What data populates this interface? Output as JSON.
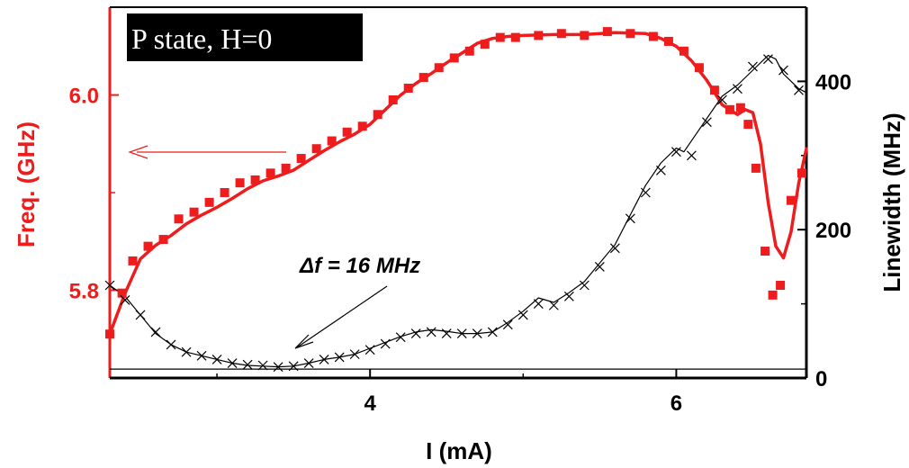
{
  "chart_data": {
    "type": "line",
    "title": "P state, H=0",
    "xlabel": "I (mA)",
    "ylabel_left": "Freq. (GHz)",
    "ylabel_right": "Linewidth (MHz)",
    "xlim": [
      2.3,
      6.85
    ],
    "ylim_left": [
      5.71,
      6.09
    ],
    "ylim_right": [
      0,
      500
    ],
    "x_ticks": [
      4,
      6
    ],
    "x_tick_labels": [
      "4",
      "6"
    ],
    "y_left_ticks": [
      5.8,
      6.0
    ],
    "y_left_tick_labels": [
      "5.8",
      "6.0"
    ],
    "y_right_ticks": [
      0,
      200,
      400
    ],
    "y_right_tick_labels": [
      "0",
      "200",
      "400"
    ],
    "baseline_linewidth": 12,
    "annotation": "Δf = 16 MHz",
    "colors": {
      "frequency": "#ee1c1c",
      "linewidth": "#000000",
      "title_bg": "#000000",
      "title_fg": "#ffffff"
    },
    "series": [
      {
        "name": "Frequency",
        "axis": "left",
        "marker": "square",
        "color": "#ee1c1c",
        "curve": [
          [
            2.3,
            5.755
          ],
          [
            2.4,
            5.797
          ],
          [
            2.5,
            5.832
          ],
          [
            2.6,
            5.846
          ],
          [
            2.7,
            5.856
          ],
          [
            2.8,
            5.868
          ],
          [
            2.9,
            5.877
          ],
          [
            3.0,
            5.885
          ],
          [
            3.1,
            5.894
          ],
          [
            3.2,
            5.904
          ],
          [
            3.3,
            5.912
          ],
          [
            3.4,
            5.917
          ],
          [
            3.5,
            5.923
          ],
          [
            3.6,
            5.933
          ],
          [
            3.7,
            5.943
          ],
          [
            3.8,
            5.952
          ],
          [
            3.9,
            5.96
          ],
          [
            4.0,
            5.97
          ],
          [
            4.1,
            5.985
          ],
          [
            4.2,
            6.0
          ],
          [
            4.3,
            6.012
          ],
          [
            4.4,
            6.022
          ],
          [
            4.5,
            6.033
          ],
          [
            4.6,
            6.043
          ],
          [
            4.7,
            6.053
          ],
          [
            4.8,
            6.058
          ],
          [
            4.9,
            6.06
          ],
          [
            5.0,
            6.061
          ],
          [
            5.2,
            6.062
          ],
          [
            5.4,
            6.062
          ],
          [
            5.6,
            6.064
          ],
          [
            5.8,
            6.063
          ],
          [
            5.9,
            6.058
          ],
          [
            6.0,
            6.05
          ],
          [
            6.1,
            6.035
          ],
          [
            6.2,
            6.015
          ],
          [
            6.3,
            5.99
          ],
          [
            6.4,
            5.98
          ],
          [
            6.45,
            5.985
          ],
          [
            6.5,
            5.982
          ],
          [
            6.55,
            5.95
          ],
          [
            6.6,
            5.89
          ],
          [
            6.65,
            5.845
          ],
          [
            6.7,
            5.833
          ],
          [
            6.75,
            5.86
          ],
          [
            6.8,
            5.91
          ],
          [
            6.85,
            5.945
          ]
        ],
        "markers": [
          [
            2.3,
            5.755
          ],
          [
            2.38,
            5.797
          ],
          [
            2.45,
            5.83
          ],
          [
            2.55,
            5.845
          ],
          [
            2.65,
            5.852
          ],
          [
            2.75,
            5.873
          ],
          [
            2.85,
            5.88
          ],
          [
            2.95,
            5.89
          ],
          [
            3.05,
            5.9
          ],
          [
            3.15,
            5.91
          ],
          [
            3.25,
            5.913
          ],
          [
            3.35,
            5.92
          ],
          [
            3.45,
            5.925
          ],
          [
            3.55,
            5.935
          ],
          [
            3.65,
            5.945
          ],
          [
            3.75,
            5.953
          ],
          [
            3.85,
            5.962
          ],
          [
            3.95,
            5.968
          ],
          [
            4.05,
            5.98
          ],
          [
            4.15,
            5.995
          ],
          [
            4.25,
            6.007
          ],
          [
            4.35,
            6.018
          ],
          [
            4.45,
            6.028
          ],
          [
            4.55,
            6.038
          ],
          [
            4.65,
            6.045
          ],
          [
            4.75,
            6.052
          ],
          [
            4.85,
            6.059
          ],
          [
            4.95,
            6.059
          ],
          [
            5.1,
            6.061
          ],
          [
            5.25,
            6.063
          ],
          [
            5.4,
            6.061
          ],
          [
            5.55,
            6.065
          ],
          [
            5.7,
            6.063
          ],
          [
            5.85,
            6.06
          ],
          [
            5.95,
            6.055
          ],
          [
            6.05,
            6.045
          ],
          [
            6.15,
            6.028
          ],
          [
            6.25,
            6.005
          ],
          [
            6.35,
            5.985
          ],
          [
            6.42,
            5.987
          ],
          [
            6.47,
            5.97
          ],
          [
            6.52,
            5.925
          ],
          [
            6.58,
            5.84
          ],
          [
            6.63,
            5.795
          ],
          [
            6.68,
            5.805
          ],
          [
            6.75,
            5.892
          ],
          [
            6.82,
            5.92
          ]
        ]
      },
      {
        "name": "Linewidth",
        "axis": "right",
        "marker": "x",
        "color": "#000000",
        "curve": [
          [
            2.3,
            125
          ],
          [
            2.4,
            110
          ],
          [
            2.5,
            85
          ],
          [
            2.6,
            60
          ],
          [
            2.7,
            45
          ],
          [
            2.8,
            35
          ],
          [
            2.9,
            30
          ],
          [
            3.0,
            25
          ],
          [
            3.1,
            20
          ],
          [
            3.2,
            17
          ],
          [
            3.3,
            16
          ],
          [
            3.4,
            15
          ],
          [
            3.5,
            16
          ],
          [
            3.6,
            20
          ],
          [
            3.7,
            25
          ],
          [
            3.8,
            28
          ],
          [
            3.9,
            32
          ],
          [
            4.0,
            40
          ],
          [
            4.1,
            48
          ],
          [
            4.2,
            56
          ],
          [
            4.3,
            62
          ],
          [
            4.4,
            65
          ],
          [
            4.5,
            63
          ],
          [
            4.6,
            60
          ],
          [
            4.7,
            60
          ],
          [
            4.8,
            62
          ],
          [
            4.9,
            75
          ],
          [
            5.0,
            90
          ],
          [
            5.1,
            108
          ],
          [
            5.15,
            105
          ],
          [
            5.2,
            102
          ],
          [
            5.3,
            115
          ],
          [
            5.4,
            130
          ],
          [
            5.5,
            155
          ],
          [
            5.6,
            180
          ],
          [
            5.7,
            220
          ],
          [
            5.8,
            260
          ],
          [
            5.9,
            290
          ],
          [
            6.0,
            310
          ],
          [
            6.05,
            305
          ],
          [
            6.1,
            320
          ],
          [
            6.2,
            350
          ],
          [
            6.3,
            380
          ],
          [
            6.4,
            395
          ],
          [
            6.5,
            415
          ],
          [
            6.6,
            435
          ],
          [
            6.65,
            430
          ],
          [
            6.7,
            410
          ],
          [
            6.8,
            390
          ],
          [
            6.85,
            385
          ]
        ],
        "markers": [
          [
            2.3,
            125
          ],
          [
            2.4,
            105
          ],
          [
            2.5,
            85
          ],
          [
            2.6,
            62
          ],
          [
            2.7,
            45
          ],
          [
            2.8,
            35
          ],
          [
            2.9,
            30
          ],
          [
            3.0,
            25
          ],
          [
            3.1,
            20
          ],
          [
            3.2,
            18
          ],
          [
            3.3,
            17
          ],
          [
            3.4,
            15
          ],
          [
            3.5,
            16
          ],
          [
            3.6,
            20
          ],
          [
            3.7,
            25
          ],
          [
            3.8,
            28
          ],
          [
            3.9,
            32
          ],
          [
            4.0,
            38
          ],
          [
            4.1,
            46
          ],
          [
            4.2,
            55
          ],
          [
            4.3,
            60
          ],
          [
            4.4,
            62
          ],
          [
            4.5,
            60
          ],
          [
            4.6,
            60
          ],
          [
            4.7,
            60
          ],
          [
            4.8,
            62
          ],
          [
            4.9,
            72
          ],
          [
            5.0,
            85
          ],
          [
            5.1,
            100
          ],
          [
            5.2,
            98
          ],
          [
            5.3,
            110
          ],
          [
            5.4,
            125
          ],
          [
            5.5,
            150
          ],
          [
            5.6,
            175
          ],
          [
            5.7,
            215
          ],
          [
            5.8,
            250
          ],
          [
            5.9,
            280
          ],
          [
            6.0,
            305
          ],
          [
            6.1,
            300
          ],
          [
            6.2,
            345
          ],
          [
            6.3,
            375
          ],
          [
            6.4,
            390
          ],
          [
            6.5,
            420
          ],
          [
            6.6,
            430
          ],
          [
            6.7,
            415
          ],
          [
            6.8,
            388
          ]
        ]
      }
    ]
  }
}
